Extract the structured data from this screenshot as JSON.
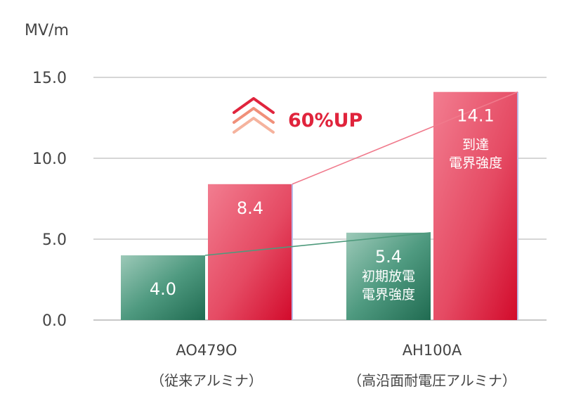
{
  "chart_data": {
    "type": "bar",
    "ylabel": "MV/m",
    "ylim": [
      0,
      15
    ],
    "yticks": [
      "0.0",
      "5.0",
      "10.0",
      "15.0"
    ],
    "grid": true,
    "categories": [
      {
        "name": "AO479O",
        "sub": "（従来アルミナ）"
      },
      {
        "name": "AH100A",
        "sub": "（高沿面耐電圧アルミナ）"
      }
    ],
    "series": [
      {
        "values": [
          4.0,
          5.4
        ],
        "labels": [
          "4.0",
          "5.4"
        ],
        "color": "#2f7d62",
        "caption": [
          "初期放電",
          "電界強度"
        ]
      },
      {
        "values": [
          8.4,
          14.1
        ],
        "labels": [
          "8.4",
          "14.1"
        ],
        "color": "#e8546d",
        "caption": [
          "到達",
          "電界強度"
        ]
      }
    ],
    "annotation": {
      "text": "60%UP",
      "color": "#e0243c"
    }
  }
}
